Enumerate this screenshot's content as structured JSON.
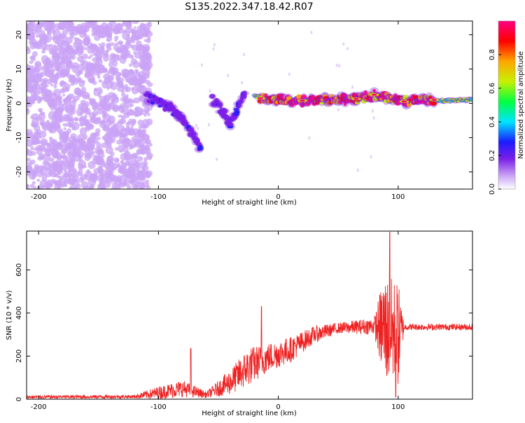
{
  "title": "S135.2022.347.18.42.R07",
  "chart_data": [
    {
      "type": "heatmap",
      "xlabel": "Height of straight line (km)",
      "ylabel": "Frequency (Hz)",
      "xlim": [
        -210,
        162
      ],
      "ylim": [
        -25,
        24
      ],
      "x_ticks": [
        -200,
        -100,
        0,
        100
      ],
      "y_ticks": [
        -20,
        -10,
        0,
        10,
        20
      ],
      "colorbar": {
        "label": "Normalized spectral amplitude",
        "range": [
          0,
          1
        ],
        "ticks": [
          "0.0",
          "0.2",
          "0.4",
          "0.6",
          "0.8"
        ]
      },
      "colormap": [
        "#ffffff",
        "#c9a3f5",
        "#7b1fe8",
        "#1b1bff",
        "#00e5ff",
        "#00ff40",
        "#c8f000",
        "#ffa500",
        "#ff0000",
        "#ff0080"
      ],
      "features": [
        {
          "region": "noise",
          "x_range": [
            -210,
            -107
          ],
          "y_range": [
            -25,
            24
          ],
          "amplitude_range": [
            0.0,
            0.15
          ]
        },
        {
          "region": "signal_branch_1",
          "points": [
            [
              -110,
              2
            ],
            [
              -100,
              0
            ],
            [
              -90,
              -1
            ],
            [
              -80,
              -5
            ],
            [
              -70,
              -10
            ],
            [
              -65,
              -13
            ]
          ],
          "amplitude": 0.25
        },
        {
          "region": "signal_branch_2",
          "points": [
            [
              -55,
              1
            ],
            [
              -45,
              -3
            ],
            [
              -40,
              -6
            ],
            [
              -35,
              -2
            ],
            [
              -28,
              3
            ]
          ],
          "amplitude": 0.25
        },
        {
          "region": "main_line",
          "points": [
            [
              -20,
              2
            ],
            [
              0,
              1
            ],
            [
              40,
              1
            ],
            [
              80,
              1.5
            ],
            [
              100,
              0.5
            ],
            [
              162,
              1
            ]
          ],
          "amplitude": 0.6
        },
        {
          "region": "hot_spots",
          "points": [
            [
              -15,
              1.5
            ],
            [
              20,
              0.8
            ],
            [
              65,
              1.3
            ],
            [
              80,
              2.5
            ],
            [
              105,
              0.5
            ],
            [
              130,
              1
            ]
          ],
          "amplitude": 0.95
        }
      ]
    },
    {
      "type": "line",
      "xlabel": "Height of straight line (km)",
      "ylabel": "SNR (10 * v/v)",
      "xlim": [
        -210,
        162
      ],
      "ylim": [
        0,
        780
      ],
      "x_ticks": [
        -200,
        -100,
        0,
        100
      ],
      "y_ticks": [
        0,
        200,
        400,
        600
      ],
      "grid": false,
      "color": "#ee2222",
      "envelope": [
        {
          "x": -210,
          "base": 10,
          "spread": 8
        },
        {
          "x": -120,
          "base": 12,
          "spread": 8
        },
        {
          "x": -100,
          "base": 30,
          "spread": 30
        },
        {
          "x": -80,
          "base": 50,
          "spread": 40
        },
        {
          "x": -60,
          "base": 20,
          "spread": 15
        },
        {
          "x": -40,
          "base": 80,
          "spread": 60
        },
        {
          "x": -25,
          "base": 150,
          "spread": 90
        },
        {
          "x": -10,
          "base": 190,
          "spread": 70
        },
        {
          "x": 10,
          "base": 230,
          "spread": 60
        },
        {
          "x": 30,
          "base": 300,
          "spread": 40
        },
        {
          "x": 50,
          "base": 330,
          "spread": 25
        },
        {
          "x": 80,
          "base": 340,
          "spread": 40
        },
        {
          "x": 88,
          "base": 330,
          "spread": 250
        },
        {
          "x": 100,
          "base": 300,
          "spread": 250
        },
        {
          "x": 105,
          "base": 335,
          "spread": 15
        },
        {
          "x": 162,
          "base": 335,
          "spread": 15
        }
      ],
      "peaks": [
        {
          "x": -73,
          "y": 235
        },
        {
          "x": -14,
          "y": 430
        },
        {
          "x": 93,
          "y": 775
        },
        {
          "x": 98,
          "y": 10
        }
      ]
    }
  ]
}
